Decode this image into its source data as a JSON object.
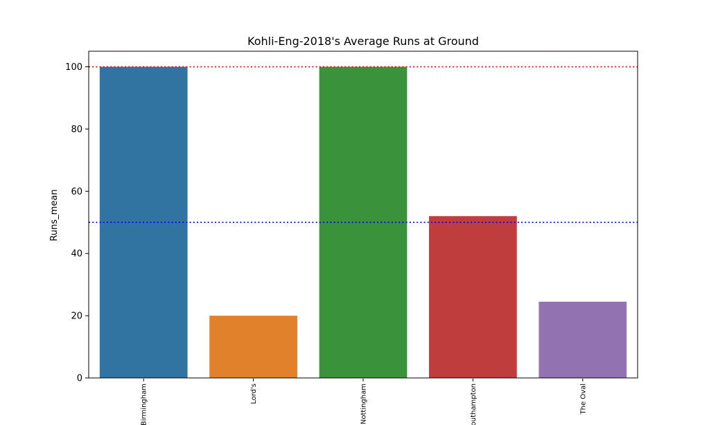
{
  "chart_data": {
    "type": "bar",
    "title": "Kohli-Eng-2018's Average Runs at Ground",
    "xlabel": "",
    "ylabel": "Runs_mean",
    "categories": [
      "Birmingham",
      "Lord's",
      "Nottingham",
      "Southampton",
      "The Oval"
    ],
    "values": [
      100,
      20,
      100,
      52,
      24.5
    ],
    "colors": [
      "#3274a1",
      "#e1812c",
      "#3a923a",
      "#c03d3e",
      "#9372b2"
    ],
    "ylim": [
      0,
      105
    ],
    "yticks": [
      0,
      20,
      40,
      60,
      80,
      100
    ],
    "grid": false,
    "reference_lines": [
      {
        "value": 100,
        "color": "#ff0000",
        "style": "dotted"
      },
      {
        "value": 50,
        "color": "#0000ff",
        "style": "dotted"
      }
    ]
  }
}
